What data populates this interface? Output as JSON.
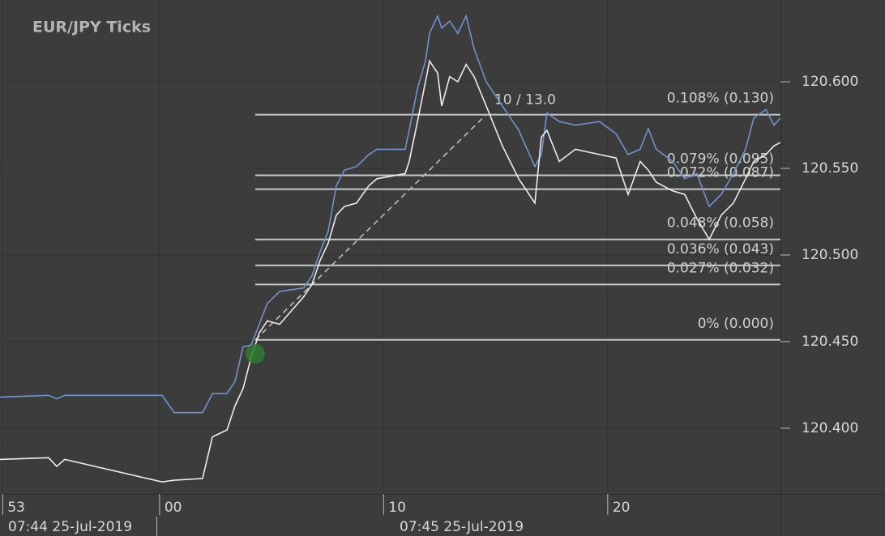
{
  "chart_data": {
    "type": "line",
    "title": "EUR/JPY  Ticks",
    "x": [
      52.88,
      55.05,
      55.41,
      55.77,
      60.11,
      60.66,
      61.92,
      62.36,
      63.01,
      63.37,
      63.73,
      64.09,
      64.45,
      64.81,
      65.36,
      66.44,
      66.8,
      67.17,
      67.53,
      67.89,
      68.25,
      68.79,
      69.34,
      69.7,
      70.96,
      71.14,
      71.51,
      71.87,
      72.05,
      72.41,
      72.59,
      72.95,
      73.31,
      73.68,
      74.04,
      74.58,
      75.3,
      76.03,
      76.75,
      77.04,
      77.29,
      77.84,
      78.56,
      79.64,
      80.37,
      80.91,
      81.45,
      81.81,
      82.17,
      82.9,
      83.44,
      83.98,
      84.53,
      85.07,
      85.61,
      86.15,
      86.52,
      87.06,
      87.42,
      87.71
    ],
    "series": [
      {
        "color": "#7392cc",
        "values": [
          120.418,
          120.419,
          120.417,
          120.419,
          120.419,
          120.409,
          120.409,
          120.42,
          120.42,
          120.427,
          120.447,
          120.448,
          120.46,
          120.472,
          120.479,
          120.481,
          120.488,
          120.502,
          120.514,
          120.54,
          120.549,
          120.551,
          120.558,
          120.561,
          120.561,
          120.572,
          120.596,
          120.612,
          120.628,
          120.638,
          120.631,
          120.635,
          120.628,
          120.638,
          120.619,
          120.6,
          120.586,
          120.572,
          120.551,
          120.558,
          120.582,
          120.577,
          120.575,
          120.577,
          120.57,
          120.558,
          120.561,
          120.573,
          120.561,
          120.554,
          120.544,
          120.547,
          120.528,
          120.535,
          120.547,
          120.561,
          120.579,
          120.584,
          120.575,
          120.579
        ]
      },
      {
        "color": "#ececec",
        "values": [
          120.382,
          120.383,
          120.378,
          120.382,
          120.369,
          120.37,
          120.371,
          120.395,
          120.399,
          120.413,
          120.423,
          120.441,
          120.455,
          120.462,
          120.46,
          120.476,
          120.483,
          120.497,
          120.507,
          120.523,
          120.528,
          120.53,
          120.54,
          120.544,
          120.547,
          120.554,
          120.577,
          120.6,
          120.612,
          120.605,
          120.586,
          120.603,
          120.6,
          120.61,
          120.603,
          120.586,
          120.563,
          120.544,
          120.53,
          120.568,
          120.572,
          120.554,
          120.561,
          120.558,
          120.556,
          120.535,
          120.554,
          120.549,
          120.542,
          120.537,
          120.535,
          120.521,
          120.509,
          120.523,
          120.53,
          120.544,
          120.554,
          120.558,
          120.563,
          120.565
        ]
      }
    ],
    "xlim": [
      52.88,
      87.71
    ],
    "xticks": [
      {
        "value": 53,
        "label": "53"
      },
      {
        "value": 60,
        "label": "00"
      },
      {
        "value": 70,
        "label": "10"
      },
      {
        "value": 80,
        "label": "20"
      }
    ],
    "x_dates": [
      "07:44 25-Jul-2019",
      "07:45 25-Jul-2019"
    ],
    "ylim": [
      120.3621,
      120.6472
    ],
    "yticks": [
      {
        "value": 120.4,
        "label": "120.400"
      },
      {
        "value": 120.45,
        "label": "120.450"
      },
      {
        "value": 120.5,
        "label": "120.500"
      },
      {
        "value": 120.55,
        "label": "120.550"
      },
      {
        "value": 120.6,
        "label": "120.600"
      }
    ],
    "grid": true,
    "fib_start_x": 64.27,
    "fib_levels": [
      {
        "value": 120.581,
        "label": "0.108% (0.130)"
      },
      {
        "value": 120.546,
        "label": "0.079% (0.095)"
      },
      {
        "value": 120.538,
        "label": "0.072% (0.087)"
      },
      {
        "value": 120.509,
        "label": "0.048% (0.058)"
      },
      {
        "value": 120.494,
        "label": "0.036% (0.043)"
      },
      {
        "value": 120.483,
        "label": "0.027% (0.032)"
      },
      {
        "value": 120.451,
        "label": "0% (0.000)"
      }
    ],
    "trend": {
      "x": [
        64.27,
        74.58
      ],
      "y": [
        120.451,
        120.581
      ],
      "label": "10 / 13.0"
    },
    "marker": {
      "x": 64.27,
      "y": 120.443,
      "color": "#2f7a2f"
    }
  }
}
